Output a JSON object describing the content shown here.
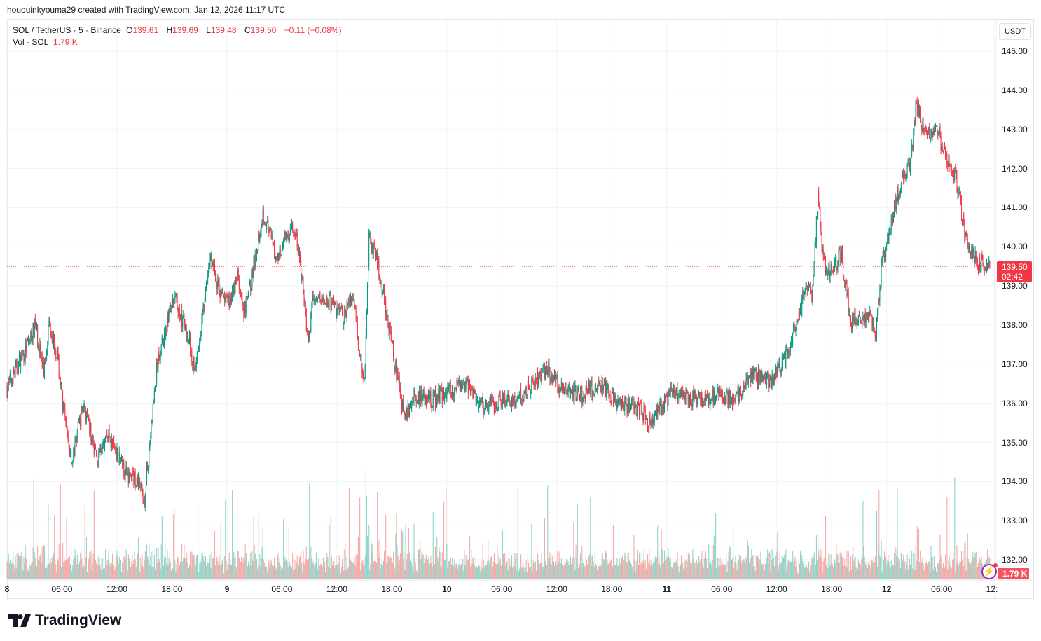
{
  "caption": "hououinkyouma29 created with TradingView.com, Jan 12, 2026 11:17 UTC",
  "legend": {
    "symbol": "SOL / TetherUS · 5 · Binance",
    "o_label": "O",
    "o": "139.61",
    "h_label": "H",
    "h": "139.69",
    "l_label": "L",
    "l": "139.48",
    "c_label": "C",
    "c": "139.50",
    "change": "−0.11 (−0.08%)",
    "vol_label": "Vol · SOL",
    "vol": "1.79 K"
  },
  "currency": "USDT",
  "price_tag": {
    "price": "139.50",
    "countdown": "02:42"
  },
  "volume_tag": "1.79 K",
  "logo": "TradingView",
  "colors": {
    "up": "#089981",
    "down": "#f23645",
    "vol_up": "#8fd5c9",
    "vol_down": "#f7a9a7"
  },
  "chart_data": {
    "type": "candlestick",
    "interval": "5m",
    "y_ticks": [
      "145.00",
      "144.00",
      "143.00",
      "142.00",
      "141.00",
      "140.00",
      "139.00",
      "138.00",
      "137.00",
      "136.00",
      "135.00",
      "134.00",
      "133.00",
      "132.00"
    ],
    "ylim": [
      131.5,
      145.8
    ],
    "x_ticks": [
      "8",
      "06:00",
      "12:00",
      "18:00",
      "9",
      "06:00",
      "12:00",
      "18:00",
      "10",
      "06:00",
      "12:00",
      "18:00",
      "11",
      "06:00",
      "12:00",
      "18:00",
      "12",
      "06:00",
      "12:"
    ],
    "last_price": 139.5,
    "close_path_hours_from_jan8": [
      [
        0,
        136.4
      ],
      [
        0.8,
        136.8
      ],
      [
        1.9,
        137.3
      ],
      [
        3.1,
        138
      ],
      [
        4,
        136.8
      ],
      [
        4.6,
        138.1
      ],
      [
        5.5,
        137.2
      ],
      [
        6.5,
        135.2
      ],
      [
        7.1,
        134.5
      ],
      [
        8.3,
        136
      ],
      [
        9.9,
        134.5
      ],
      [
        10.9,
        135.2
      ],
      [
        11.9,
        134.8
      ],
      [
        13,
        134.2
      ],
      [
        14.5,
        134
      ],
      [
        14.9,
        133.3
      ],
      [
        15.7,
        135.3
      ],
      [
        16.4,
        137
      ],
      [
        17.6,
        138.2
      ],
      [
        18.3,
        138.7
      ],
      [
        19.9,
        137.6
      ],
      [
        20.4,
        136.8
      ],
      [
        21.4,
        138.3
      ],
      [
        22.2,
        139.8
      ],
      [
        23,
        139
      ],
      [
        24.1,
        138.5
      ],
      [
        25.2,
        139.3
      ],
      [
        25.8,
        138.2
      ],
      [
        26.8,
        139.3
      ],
      [
        27.9,
        140.9
      ],
      [
        29.4,
        139.7
      ],
      [
        31,
        140.5
      ],
      [
        31.7,
        140.1
      ],
      [
        32.3,
        138.9
      ],
      [
        32.9,
        137.5
      ],
      [
        33.4,
        138.7
      ],
      [
        35.2,
        138.6
      ],
      [
        36.7,
        138.2
      ],
      [
        37.8,
        138.8
      ],
      [
        38.4,
        137.5
      ],
      [
        39,
        136.5
      ],
      [
        39.5,
        140.3
      ],
      [
        40.5,
        139.5
      ],
      [
        41.3,
        138.5
      ],
      [
        41.9,
        137.6
      ],
      [
        42.5,
        136.8
      ],
      [
        43.4,
        135.6
      ],
      [
        44.3,
        136.2
      ],
      [
        46.6,
        136.1
      ],
      [
        50.1,
        136.5
      ],
      [
        52,
        135.9
      ],
      [
        55.8,
        136.1
      ],
      [
        58.9,
        136.9
      ],
      [
        60.4,
        136.4
      ],
      [
        62.6,
        136.2
      ],
      [
        64.9,
        136.5
      ],
      [
        66.5,
        136
      ],
      [
        68.8,
        135.9
      ],
      [
        70.3,
        135.5
      ],
      [
        72.6,
        136.3
      ],
      [
        74.9,
        136.1
      ],
      [
        78,
        136.2
      ],
      [
        79.5,
        136.1
      ],
      [
        81,
        136.7
      ],
      [
        83.3,
        136.6
      ],
      [
        84.9,
        137.1
      ],
      [
        86.4,
        138.2
      ],
      [
        87.2,
        139
      ],
      [
        87.9,
        138.8
      ],
      [
        88.5,
        141.3
      ],
      [
        89.1,
        139.6
      ],
      [
        89.8,
        139.3
      ],
      [
        91,
        139.8
      ],
      [
        92.1,
        138.1
      ],
      [
        94,
        138.3
      ],
      [
        94.8,
        137.7
      ],
      [
        95.4,
        139.4
      ],
      [
        96.3,
        140.5
      ],
      [
        97.5,
        141.6
      ],
      [
        98.6,
        142.2
      ],
      [
        99.2,
        143.6
      ],
      [
        100.2,
        142.9
      ],
      [
        101.7,
        142.9
      ],
      [
        102.4,
        142.2
      ],
      [
        103.6,
        141.7
      ],
      [
        104.6,
        140.2
      ],
      [
        105.9,
        139.6
      ],
      [
        107.25,
        139.5
      ]
    ]
  }
}
